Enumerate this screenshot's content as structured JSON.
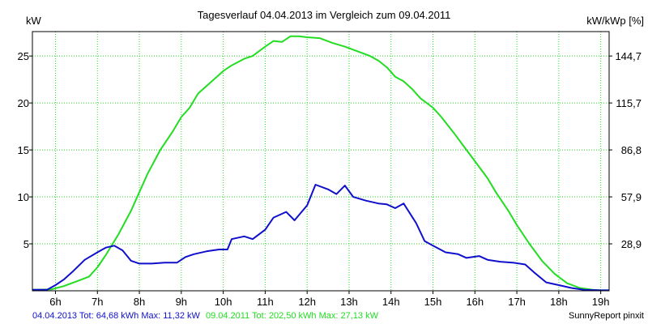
{
  "chart_data": {
    "type": "line",
    "title": "Tagesverlauf 04.04.2013 im Vergleich zum 09.04.2011",
    "ylabel_left": "kW",
    "ylabel_right": "kW/kWp [%]",
    "x_range": [
      5.45,
      19.2
    ],
    "ylim": [
      0,
      27.6
    ],
    "grid": true,
    "x_ticks": [
      {
        "x": 6,
        "label": "6h"
      },
      {
        "x": 7,
        "label": "7h"
      },
      {
        "x": 8,
        "label": "8h"
      },
      {
        "x": 9,
        "label": "9h"
      },
      {
        "x": 10,
        "label": "10h"
      },
      {
        "x": 11,
        "label": "11h"
      },
      {
        "x": 12,
        "label": "12h"
      },
      {
        "x": 13,
        "label": "13h"
      },
      {
        "x": 14,
        "label": "14h"
      },
      {
        "x": 15,
        "label": "15h"
      },
      {
        "x": 16,
        "label": "16h"
      },
      {
        "x": 17,
        "label": "17h"
      },
      {
        "x": 18,
        "label": "18h"
      },
      {
        "x": 19,
        "label": "19h"
      }
    ],
    "y_ticks_left": [
      {
        "y": 5,
        "label": "5"
      },
      {
        "y": 10,
        "label": "10"
      },
      {
        "y": 15,
        "label": "15"
      },
      {
        "y": 20,
        "label": "20"
      },
      {
        "y": 25,
        "label": "25"
      }
    ],
    "y_ticks_right": [
      {
        "y": 5,
        "label": "28,9"
      },
      {
        "y": 10,
        "label": "57,9"
      },
      {
        "y": 15,
        "label": "86,8"
      },
      {
        "y": 20,
        "label": "115,7"
      },
      {
        "y": 25,
        "label": "144,7"
      }
    ],
    "series": [
      {
        "name": "09.04.2011",
        "color": "#22dd22",
        "x": [
          5.45,
          5.9,
          6.2,
          6.5,
          6.8,
          7.0,
          7.2,
          7.5,
          7.8,
          8.0,
          8.2,
          8.5,
          8.8,
          9.0,
          9.2,
          9.4,
          9.7,
          10.0,
          10.2,
          10.5,
          10.7,
          11.0,
          11.2,
          11.4,
          11.6,
          11.8,
          12.0,
          12.3,
          12.6,
          12.9,
          13.2,
          13.5,
          13.7,
          13.9,
          14.1,
          14.3,
          14.5,
          14.7,
          15.0,
          15.2,
          15.5,
          15.8,
          16.0,
          16.3,
          16.5,
          16.8,
          17.0,
          17.3,
          17.6,
          17.9,
          18.2,
          18.5,
          18.8,
          19.0,
          19.2
        ],
        "y": [
          0.1,
          0.15,
          0.5,
          1.0,
          1.5,
          2.5,
          3.8,
          6.0,
          8.5,
          10.5,
          12.5,
          15.0,
          17.0,
          18.5,
          19.5,
          21.0,
          22.2,
          23.4,
          24.0,
          24.7,
          25.0,
          26.0,
          26.6,
          26.5,
          27.1,
          27.1,
          27.0,
          26.9,
          26.4,
          26.0,
          25.5,
          25.0,
          24.5,
          23.8,
          22.8,
          22.3,
          21.5,
          20.5,
          19.5,
          18.5,
          16.8,
          15.0,
          13.8,
          12.0,
          10.5,
          8.5,
          7.0,
          5.0,
          3.2,
          1.8,
          0.8,
          0.3,
          0.1,
          0.05,
          0.05
        ]
      },
      {
        "name": "04.04.2013",
        "color": "#1010cc",
        "x": [
          5.45,
          5.8,
          6.0,
          6.2,
          6.4,
          6.7,
          7.0,
          7.2,
          7.4,
          7.6,
          7.8,
          8.0,
          8.3,
          8.6,
          8.9,
          9.1,
          9.3,
          9.6,
          9.9,
          10.1,
          10.2,
          10.5,
          10.7,
          11.0,
          11.2,
          11.5,
          11.7,
          12.0,
          12.2,
          12.5,
          12.7,
          12.9,
          13.1,
          13.4,
          13.7,
          13.9,
          14.1,
          14.3,
          14.6,
          14.8,
          15.0,
          15.3,
          15.6,
          15.8,
          16.1,
          16.3,
          16.6,
          16.9,
          17.2,
          17.4,
          17.7,
          18.0,
          18.3,
          18.6,
          19.0,
          19.2
        ],
        "y": [
          0.1,
          0.1,
          0.6,
          1.2,
          2.0,
          3.3,
          4.1,
          4.6,
          4.8,
          4.3,
          3.2,
          2.9,
          2.9,
          3.0,
          3.0,
          3.6,
          3.9,
          4.2,
          4.4,
          4.4,
          5.5,
          5.8,
          5.5,
          6.5,
          7.8,
          8.4,
          7.5,
          9.1,
          11.3,
          10.8,
          10.3,
          11.2,
          10.0,
          9.6,
          9.3,
          9.2,
          8.8,
          9.3,
          7.2,
          5.3,
          4.8,
          4.1,
          3.9,
          3.5,
          3.7,
          3.3,
          3.1,
          3.0,
          2.8,
          2.0,
          0.9,
          0.6,
          0.3,
          0.1,
          0.05,
          0.05
        ]
      }
    ],
    "footer": {
      "series1_text": "04.04.2013 Tot: 64,68 kWh Max: 11,32 kW",
      "series1_color": "#1010cc",
      "series2_text": "09.04.2011 Tot: 202,50 kWh Max: 27,13 kW",
      "series2_color": "#22dd22",
      "credit": "SunnyReport pinxit"
    }
  }
}
